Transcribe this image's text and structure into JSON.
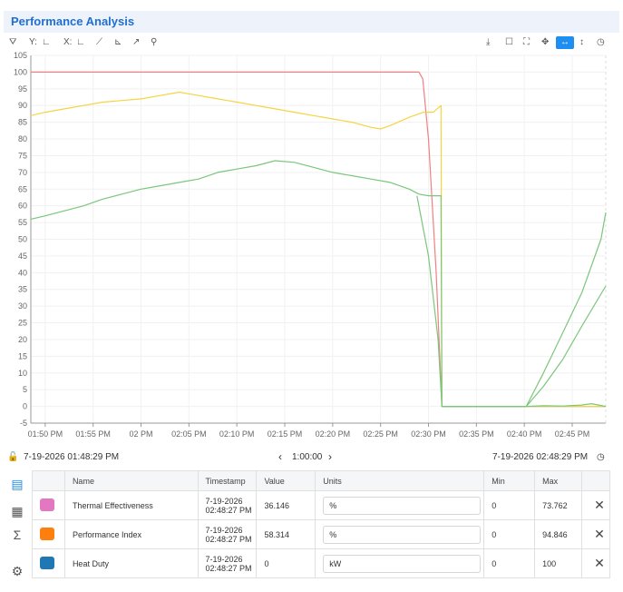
{
  "header": {
    "title": "Performance Analysis"
  },
  "toolbar": {
    "left": [
      {
        "name": "chart-settings-icon",
        "glyph": "⛛"
      },
      {
        "name": "y-axis-label",
        "text": "Y:"
      },
      {
        "name": "y-axis-icon",
        "glyph": "∟"
      },
      {
        "name": "x-axis-label",
        "text": "X:"
      },
      {
        "name": "x-axis-icon",
        "glyph": "∟"
      },
      {
        "name": "trend-icon",
        "glyph": "⟋"
      },
      {
        "name": "axis-icon",
        "glyph": "⊾"
      },
      {
        "name": "line-chart-icon",
        "glyph": "↗"
      },
      {
        "name": "link-icon",
        "glyph": "⚲"
      }
    ],
    "right": [
      {
        "name": "download-icon",
        "glyph": "⤓"
      },
      {
        "name": "comment-icon",
        "glyph": "☐"
      },
      {
        "name": "fullscreen-icon",
        "glyph": "⛶"
      },
      {
        "name": "move-icon",
        "glyph": "✥"
      },
      {
        "name": "horizontal-zoom-icon",
        "glyph": "↔",
        "active": true
      },
      {
        "name": "vertical-zoom-icon",
        "glyph": "↕"
      },
      {
        "name": "history-icon",
        "glyph": "◷"
      }
    ]
  },
  "chart_data": {
    "type": "line",
    "ylim": [
      -5,
      105
    ],
    "yticks": [
      -5,
      0,
      5,
      10,
      15,
      20,
      25,
      30,
      35,
      40,
      45,
      50,
      55,
      60,
      65,
      70,
      75,
      80,
      85,
      90,
      95,
      100,
      105
    ],
    "xlim_minutes": [
      48.5,
      108.5
    ],
    "xticks": [
      {
        "label": "01:50 PM",
        "minute": 50
      },
      {
        "label": "01:55 PM",
        "minute": 55
      },
      {
        "label": "02 PM",
        "minute": 60
      },
      {
        "label": "02:05 PM",
        "minute": 65
      },
      {
        "label": "02:10 PM",
        "minute": 70
      },
      {
        "label": "02:15 PM",
        "minute": 75
      },
      {
        "label": "02:20 PM",
        "minute": 80
      },
      {
        "label": "02:25 PM",
        "minute": 85
      },
      {
        "label": "02:30 PM",
        "minute": 90
      },
      {
        "label": "02:35 PM",
        "minute": 95
      },
      {
        "label": "02:40 PM",
        "minute": 100
      },
      {
        "label": "02:45 PM",
        "minute": 105
      }
    ],
    "series": [
      {
        "color": "#f08080",
        "points": [
          [
            48.5,
            100
          ],
          [
            89,
            100
          ],
          [
            89.4,
            98
          ],
          [
            90,
            80
          ],
          [
            90.8,
            40
          ],
          [
            91.4,
            0
          ],
          [
            108.5,
            0
          ]
        ]
      },
      {
        "color": "#f5d442",
        "points": [
          [
            48.5,
            87
          ],
          [
            50,
            88
          ],
          [
            52,
            89
          ],
          [
            54,
            90
          ],
          [
            56,
            91
          ],
          [
            58,
            91.5
          ],
          [
            60,
            92
          ],
          [
            62,
            93
          ],
          [
            64,
            94
          ],
          [
            66,
            93
          ],
          [
            68,
            92
          ],
          [
            70,
            91
          ],
          [
            72,
            90
          ],
          [
            74,
            89
          ],
          [
            76,
            88
          ],
          [
            78,
            87
          ],
          [
            80,
            86
          ],
          [
            82,
            85
          ],
          [
            84,
            83.5
          ],
          [
            85,
            83
          ],
          [
            86,
            84
          ],
          [
            88,
            86.5
          ],
          [
            89.5,
            88
          ],
          [
            90.5,
            88
          ],
          [
            91.3,
            90
          ],
          [
            91.4,
            0
          ],
          [
            108.5,
            0
          ]
        ]
      },
      {
        "color": "#7bc67b",
        "points": [
          [
            48.5,
            56
          ],
          [
            50,
            57
          ],
          [
            52,
            58.5
          ],
          [
            54,
            60
          ],
          [
            56,
            62
          ],
          [
            58,
            63.5
          ],
          [
            60,
            65
          ],
          [
            62,
            66
          ],
          [
            64,
            67
          ],
          [
            66,
            68
          ],
          [
            68,
            70
          ],
          [
            70,
            71
          ],
          [
            72,
            72
          ],
          [
            74,
            73.5
          ],
          [
            76,
            73
          ],
          [
            78,
            71.5
          ],
          [
            80,
            70
          ],
          [
            82,
            69
          ],
          [
            84,
            68
          ],
          [
            86,
            67
          ],
          [
            87,
            66
          ],
          [
            88,
            65
          ],
          [
            89,
            63.5
          ],
          [
            90,
            63
          ],
          [
            91.3,
            63
          ],
          [
            91.4,
            0
          ],
          [
            100.2,
            0
          ],
          [
            102,
            10
          ],
          [
            104,
            22
          ],
          [
            106,
            34
          ],
          [
            108,
            50
          ],
          [
            108.5,
            58
          ]
        ]
      },
      {
        "color": "#7bc67b",
        "points": [
          [
            88.8,
            63
          ],
          [
            90,
            45
          ],
          [
            91,
            20
          ],
          [
            91.4,
            0
          ],
          [
            100.2,
            0
          ],
          [
            102,
            6
          ],
          [
            104,
            14
          ],
          [
            106,
            24
          ],
          [
            108.5,
            36
          ]
        ]
      },
      {
        "color": "#7bc67b",
        "points": [
          [
            91.4,
            0
          ],
          [
            100.2,
            0
          ],
          [
            102,
            0.2
          ],
          [
            104,
            0.1
          ],
          [
            106,
            0.4
          ],
          [
            107,
            0.8
          ],
          [
            108.5,
            0
          ]
        ]
      }
    ]
  },
  "range": {
    "start": "7-19-2026 01:48:29 PM",
    "span": "1:00:00",
    "end": "7-19-2026 02:48:29 PM"
  },
  "sidebar": [
    {
      "name": "table-view-icon",
      "glyph": "▤",
      "active": true
    },
    {
      "name": "chart-view-icon",
      "glyph": "▦"
    },
    {
      "name": "statistics-icon",
      "glyph": "Σ"
    },
    {
      "name": "settings-icon",
      "glyph": "⚙"
    }
  ],
  "table": {
    "headers": [
      "Name",
      "Timestamp",
      "Value",
      "Units",
      "Min",
      "Max"
    ],
    "rows": [
      {
        "color": "#e377c2",
        "name": "Thermal Effectiveness",
        "timestamp_date": "7-19-2026",
        "timestamp_time": "02:48:27 PM",
        "value": "36.146",
        "units": "%",
        "min": "0",
        "max": "73.762"
      },
      {
        "color": "#ff7f0e",
        "name": "Performance Index",
        "timestamp_date": "7-19-2026",
        "timestamp_time": "02:48:27 PM",
        "value": "58.314",
        "units": "%",
        "min": "0",
        "max": "94.846"
      },
      {
        "color": "#1f77b4",
        "name": "Heat Duty",
        "timestamp_date": "7-19-2026",
        "timestamp_time": "02:48:27 PM",
        "value": "0",
        "units": "kW",
        "min": "0",
        "max": "100"
      }
    ]
  }
}
